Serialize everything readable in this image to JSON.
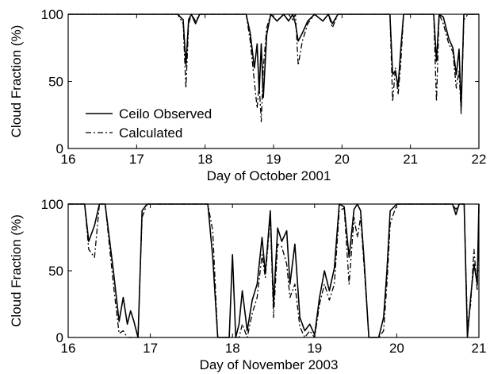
{
  "chart_data": [
    {
      "type": "line",
      "xlabel": "Day of October 2001",
      "ylabel": "Cloud Fraction (%)",
      "xlim": [
        16,
        22
      ],
      "ylim": [
        0,
        100
      ],
      "xticks": [
        16,
        17,
        18,
        19,
        20,
        21,
        22
      ],
      "yticks": [
        0,
        50,
        100
      ],
      "legend": {
        "position": "bottom-left"
      },
      "series": [
        {
          "name": "Ceilo Observed",
          "style": "solid",
          "color": "#000000",
          "x": [
            16.0,
            17.6,
            17.68,
            17.72,
            17.76,
            17.8,
            17.86,
            17.92,
            18.0,
            18.6,
            18.66,
            18.72,
            18.76,
            18.79,
            18.82,
            18.85,
            18.9,
            18.96,
            19.05,
            19.15,
            19.22,
            19.28,
            19.32,
            19.36,
            19.42,
            19.5,
            19.6,
            19.72,
            19.8,
            19.86,
            19.94,
            20.0,
            20.7,
            20.74,
            20.78,
            20.82,
            20.86,
            20.9,
            21.0,
            21.34,
            21.38,
            21.42,
            21.48,
            21.56,
            21.62,
            21.67,
            21.71,
            21.74,
            21.78,
            21.84,
            22.0
          ],
          "y": [
            100,
            100,
            96,
            62,
            96,
            100,
            93,
            100,
            100,
            100,
            86,
            60,
            78,
            42,
            78,
            38,
            85,
            100,
            95,
            100,
            95,
            100,
            93,
            80,
            86,
            95,
            100,
            95,
            100,
            93,
            100,
            100,
            100,
            55,
            58,
            46,
            75,
            100,
            100,
            100,
            65,
            100,
            98,
            82,
            75,
            55,
            74,
            30,
            100,
            100,
            100
          ]
        },
        {
          "name": "Calculated",
          "style": "dashdot",
          "color": "#000000",
          "x": [
            16.0,
            17.6,
            17.68,
            17.72,
            17.76,
            17.8,
            17.86,
            17.92,
            18.0,
            18.6,
            18.66,
            18.72,
            18.76,
            18.79,
            18.82,
            18.85,
            18.9,
            18.96,
            19.05,
            19.15,
            19.22,
            19.28,
            19.32,
            19.36,
            19.42,
            19.5,
            19.6,
            19.72,
            19.8,
            19.86,
            19.94,
            20.0,
            20.7,
            20.74,
            20.78,
            20.82,
            20.86,
            20.9,
            21.0,
            21.34,
            21.38,
            21.42,
            21.48,
            21.56,
            21.62,
            21.67,
            21.71,
            21.74,
            21.78,
            21.84,
            22.0
          ],
          "y": [
            100,
            100,
            93,
            45,
            93,
            100,
            95,
            100,
            100,
            100,
            80,
            50,
            30,
            48,
            20,
            60,
            90,
            100,
            95,
            100,
            100,
            96,
            100,
            62,
            80,
            93,
            100,
            95,
            100,
            90,
            100,
            100,
            100,
            35,
            60,
            40,
            65,
            100,
            100,
            100,
            35,
            100,
            93,
            78,
            72,
            45,
            58,
            26,
            96,
            100,
            100
          ]
        }
      ]
    },
    {
      "type": "line",
      "xlabel": "Day of November 2003",
      "ylabel": "Cloud Fraction (%)",
      "xlim": [
        16,
        21
      ],
      "ylim": [
        0,
        100
      ],
      "xticks": [
        16,
        17,
        18,
        19,
        20,
        21
      ],
      "yticks": [
        0,
        50,
        100
      ],
      "series": [
        {
          "name": "Ceilo Observed",
          "style": "solid",
          "color": "#000000",
          "x": [
            16.0,
            16.2,
            16.25,
            16.32,
            16.38,
            16.45,
            16.55,
            16.62,
            16.67,
            16.72,
            16.76,
            16.8,
            16.85,
            16.9,
            16.96,
            17.1,
            17.7,
            17.76,
            17.82,
            17.9,
            17.96,
            18.0,
            18.04,
            18.08,
            18.12,
            18.18,
            18.24,
            18.3,
            18.36,
            18.4,
            18.46,
            18.5,
            18.55,
            18.6,
            18.66,
            18.7,
            18.76,
            18.82,
            18.88,
            18.94,
            19.0,
            19.06,
            19.12,
            19.18,
            19.24,
            19.3,
            19.36,
            19.42,
            19.48,
            19.52,
            19.56,
            19.6,
            19.66,
            19.72,
            19.78,
            19.84,
            19.88,
            19.92,
            20.0,
            20.6,
            20.68,
            20.72,
            20.76,
            20.82,
            20.86,
            20.9,
            20.94,
            20.98,
            21.0
          ],
          "y": [
            100,
            100,
            72,
            84,
            100,
            100,
            50,
            12,
            30,
            10,
            20,
            12,
            0,
            95,
            100,
            100,
            100,
            60,
            0,
            0,
            0,
            62,
            0,
            10,
            35,
            5,
            28,
            40,
            75,
            48,
            95,
            25,
            82,
            72,
            80,
            40,
            70,
            15,
            5,
            10,
            2,
            30,
            50,
            35,
            52,
            100,
            98,
            60,
            96,
            100,
            95,
            60,
            0,
            0,
            0,
            15,
            50,
            95,
            100,
            100,
            100,
            92,
            100,
            100,
            0,
            30,
            55,
            40,
            100
          ]
        },
        {
          "name": "Calculated",
          "style": "dashdot",
          "color": "#000000",
          "x": [
            16.0,
            16.2,
            16.25,
            16.32,
            16.38,
            16.45,
            16.55,
            16.62,
            16.67,
            16.72,
            16.76,
            16.8,
            16.85,
            16.9,
            16.96,
            17.1,
            17.7,
            17.76,
            17.82,
            17.9,
            17.96,
            18.0,
            18.04,
            18.08,
            18.12,
            18.18,
            18.24,
            18.3,
            18.36,
            18.4,
            18.46,
            18.5,
            18.55,
            18.6,
            18.66,
            18.7,
            18.76,
            18.82,
            18.88,
            18.94,
            19.0,
            19.06,
            19.12,
            19.18,
            19.24,
            19.3,
            19.36,
            19.42,
            19.48,
            19.52,
            19.56,
            19.6,
            19.66,
            19.72,
            19.78,
            19.84,
            19.88,
            19.92,
            20.0,
            20.6,
            20.68,
            20.72,
            20.76,
            20.82,
            20.86,
            20.9,
            20.94,
            20.98,
            21.0
          ],
          "y": [
            100,
            100,
            66,
            60,
            100,
            100,
            40,
            3,
            5,
            0,
            0,
            0,
            0,
            90,
            100,
            100,
            100,
            80,
            0,
            0,
            0,
            0,
            0,
            0,
            10,
            0,
            18,
            30,
            62,
            45,
            90,
            15,
            70,
            68,
            55,
            30,
            40,
            8,
            0,
            5,
            0,
            25,
            40,
            28,
            40,
            95,
            97,
            40,
            90,
            75,
            90,
            55,
            0,
            0,
            0,
            5,
            40,
            85,
            100,
            100,
            100,
            96,
            100,
            100,
            8,
            25,
            66,
            35,
            96
          ]
        }
      ]
    }
  ]
}
